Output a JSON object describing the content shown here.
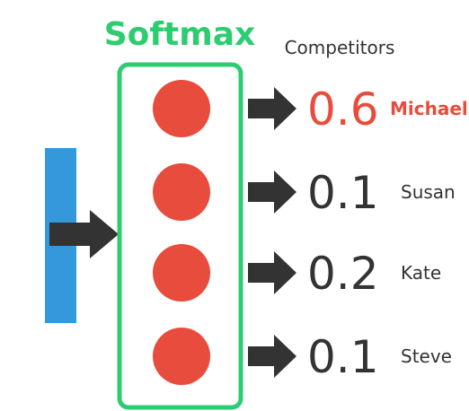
{
  "title": "Softmax",
  "competitors_heading": "Competitors",
  "colors": {
    "title": "#2ecc71",
    "box_border": "#2ecc71",
    "node": "#e74c3c",
    "input_bar": "#3498db",
    "arrow": "#333333",
    "text": "#333333",
    "highlight": "#e74c3c"
  },
  "outputs": [
    {
      "value": "0.6",
      "name": "Michael",
      "highlight": true
    },
    {
      "value": "0.1",
      "name": "Susan",
      "highlight": false
    },
    {
      "value": "0.2",
      "name": "Kate",
      "highlight": false
    },
    {
      "value": "0.1",
      "name": "Steve",
      "highlight": false
    }
  ]
}
